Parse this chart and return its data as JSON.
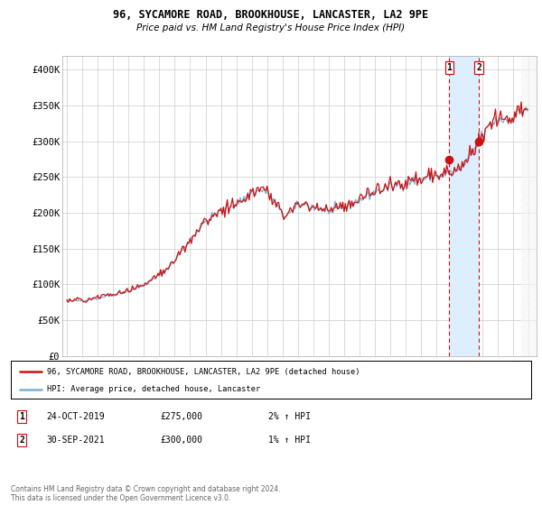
{
  "title": "96, SYCAMORE ROAD, BROOKHOUSE, LANCASTER, LA2 9PE",
  "subtitle": "Price paid vs. HM Land Registry's House Price Index (HPI)",
  "hpi_color": "#7aafd4",
  "price_color": "#cc1111",
  "dashed_line_color": "#cc1111",
  "shade_color": "#ddeeff",
  "background_color": "#ffffff",
  "grid_color": "#cccccc",
  "ylim": [
    0,
    420000
  ],
  "yticks": [
    0,
    50000,
    100000,
    150000,
    200000,
    250000,
    300000,
    350000,
    400000
  ],
  "ytick_labels": [
    "£0",
    "£50K",
    "£100K",
    "£150K",
    "£200K",
    "£250K",
    "£300K",
    "£350K",
    "£400K"
  ],
  "sale1_year": 2019.83,
  "sale1_price": 275000,
  "sale1_label": "1",
  "sale2_year": 2021.75,
  "sale2_price": 300000,
  "sale2_label": "2",
  "legend_line1": "96, SYCAMORE ROAD, BROOKHOUSE, LANCASTER, LA2 9PE (detached house)",
  "legend_line2": "HPI: Average price, detached house, Lancaster",
  "table_row1": [
    "1",
    "24-OCT-2019",
    "£275,000",
    "2% ↑ HPI"
  ],
  "table_row2": [
    "2",
    "30-SEP-2021",
    "£300,000",
    "1% ↑ HPI"
  ],
  "footer": "Contains HM Land Registry data © Crown copyright and database right 2024.\nThis data is licensed under the Open Government Licence v3.0.",
  "xlim_left": 1994.7,
  "xlim_right": 2025.5
}
